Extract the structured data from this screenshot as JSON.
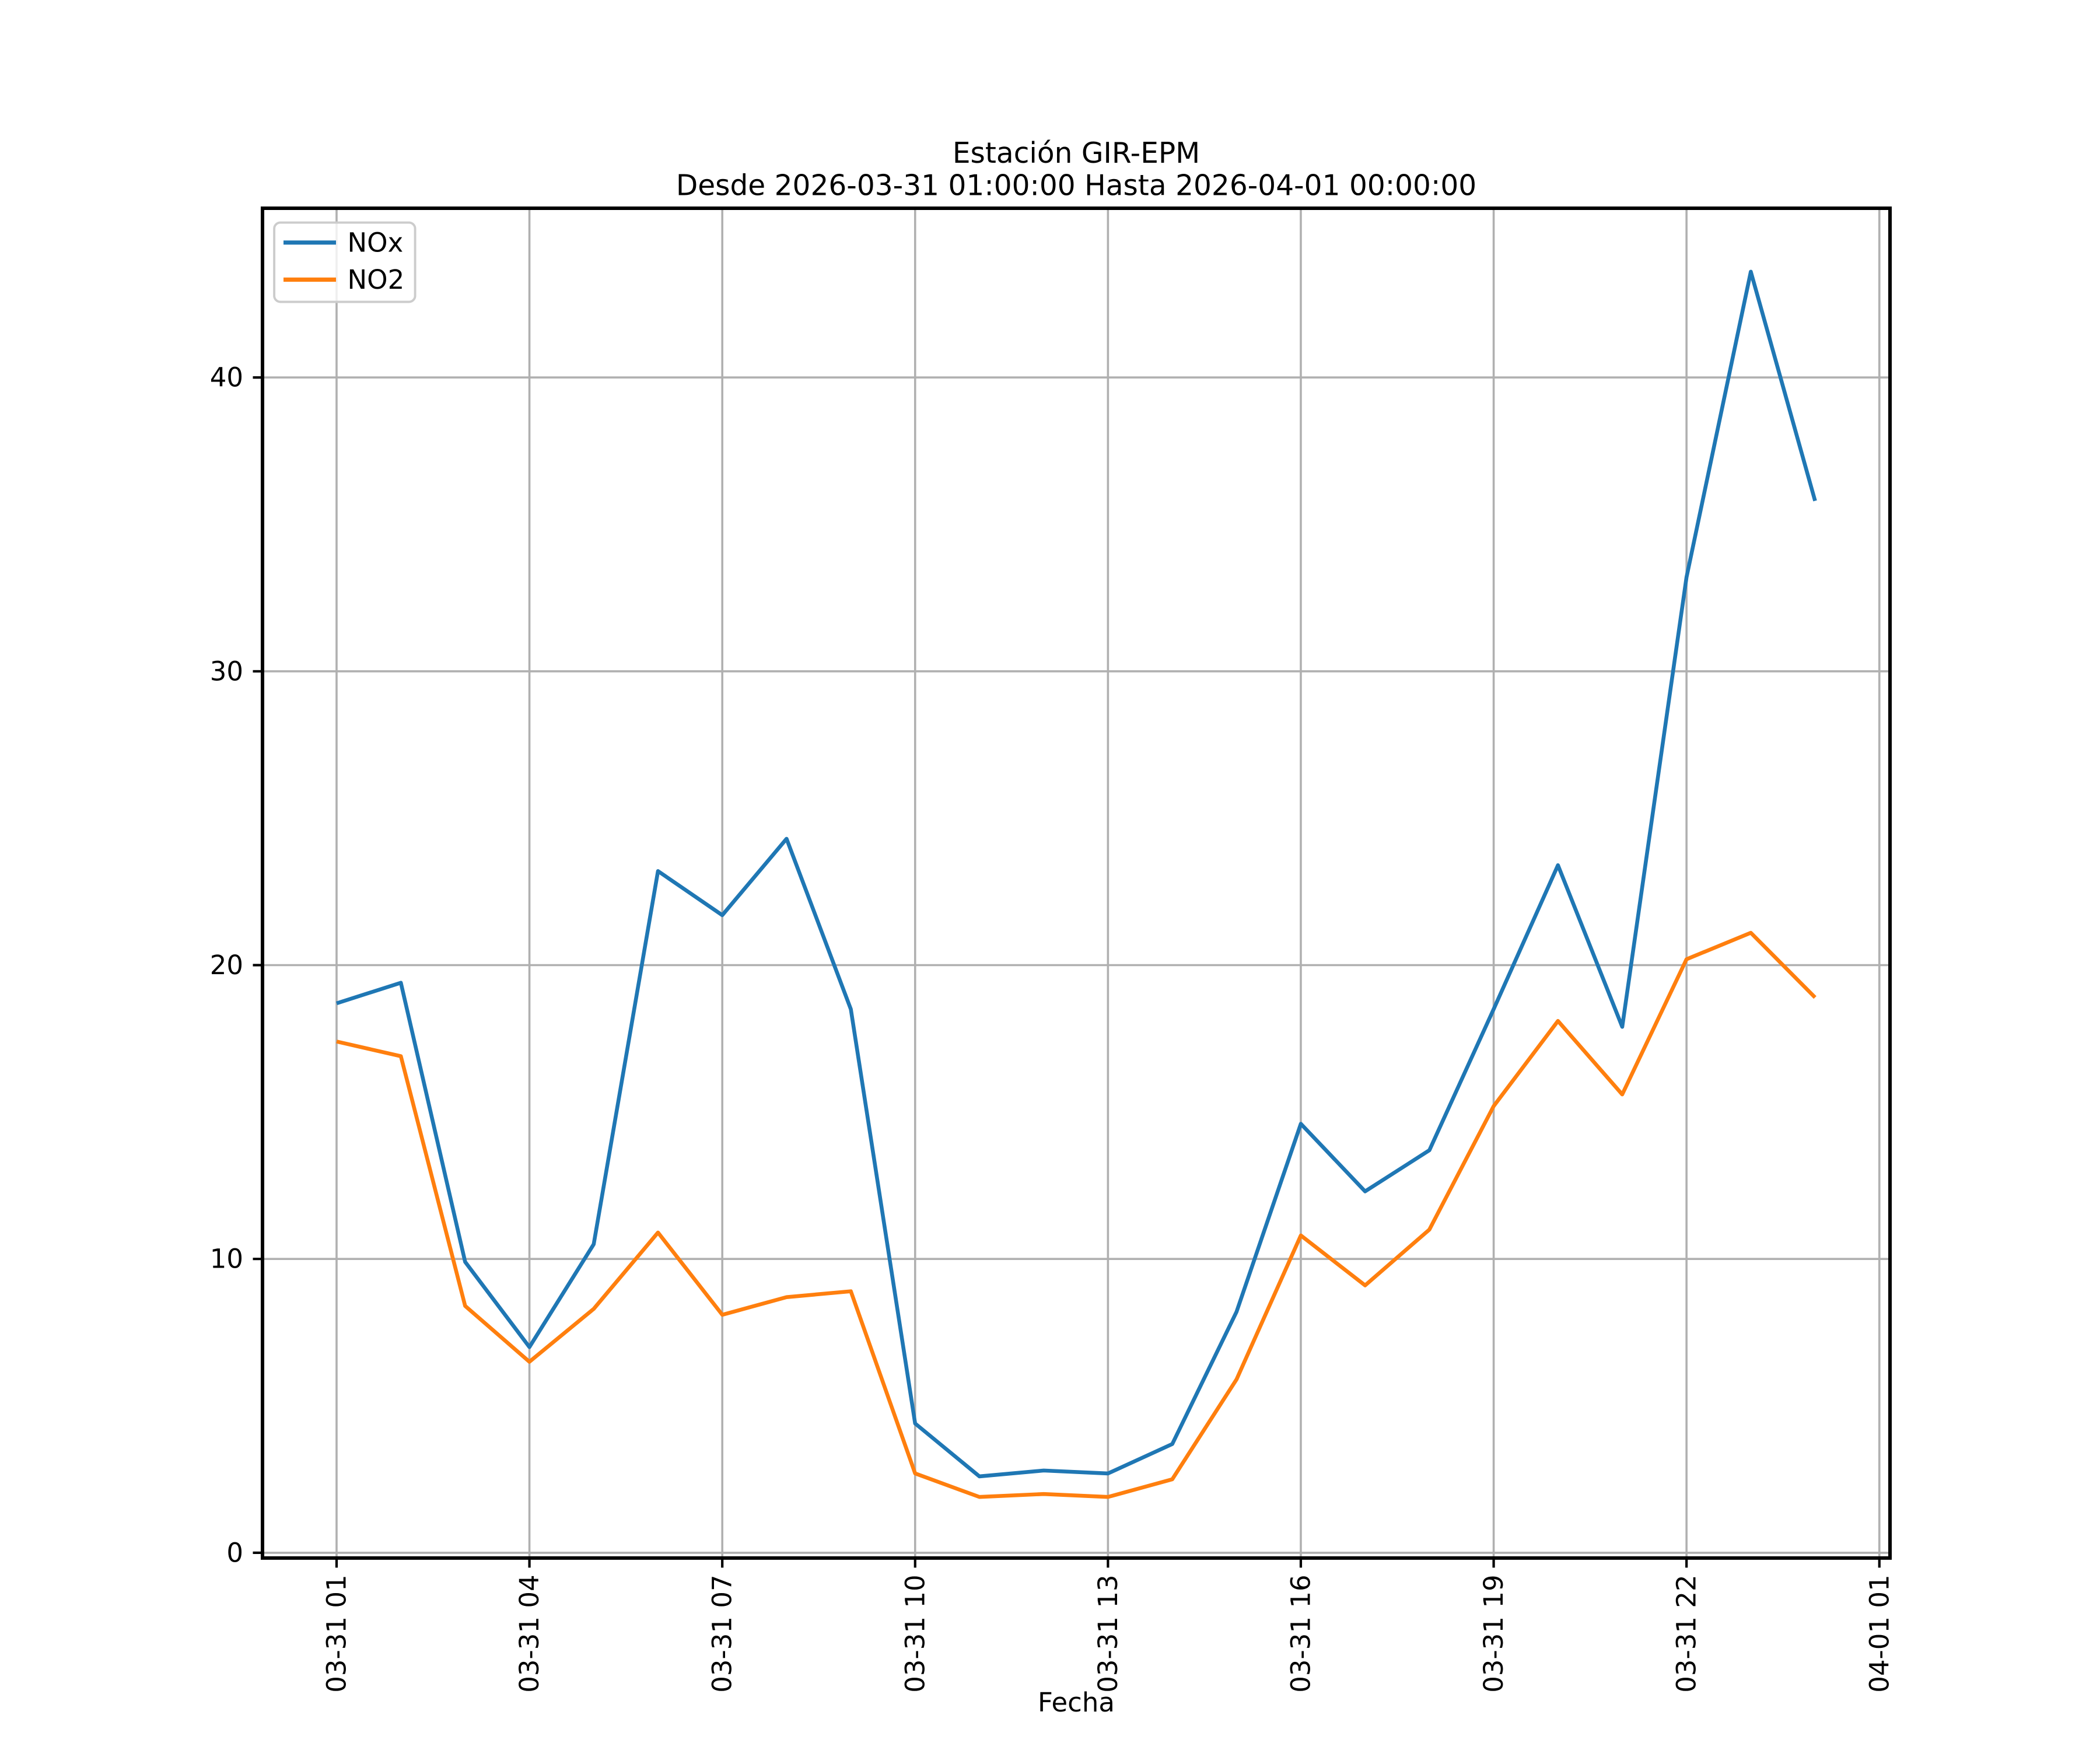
{
  "chart_data": {
    "type": "line",
    "title": "Estación GIR-EPM",
    "subtitle": "Desde 2026-03-31 01:00:00 Hasta 2026-04-01 00:00:00",
    "xlabel": "Fecha",
    "ylabel": "",
    "grid": true,
    "legend_position": "upper-left",
    "background_color": "#ffffff",
    "grid_color": "#b0b0b0",
    "x_start": "2026-03-31 01:00:00",
    "x_end": "2026-04-01 00:00:00",
    "x_step_hours": 1,
    "x_tick_labels": [
      "03-31 01",
      "03-31 04",
      "03-31 07",
      "03-31 10",
      "03-31 13",
      "03-31 16",
      "03-31 19",
      "03-31 22",
      "04-01 01"
    ],
    "x_tick_indices": [
      0,
      3,
      6,
      9,
      12,
      15,
      18,
      21,
      24
    ],
    "y_ticks": [
      0,
      10,
      20,
      30,
      40
    ],
    "ylim": [
      -0.2,
      45.8
    ],
    "series": [
      {
        "name": "NOx",
        "color": "#1f77b4",
        "values": [
          18.7,
          19.4,
          9.9,
          7.0,
          10.5,
          23.2,
          21.7,
          24.3,
          18.5,
          4.4,
          2.6,
          2.8,
          2.7,
          3.7,
          8.2,
          14.6,
          12.3,
          13.7,
          18.5,
          23.4,
          17.9,
          33.2,
          43.6,
          35.8
        ]
      },
      {
        "name": "NO2",
        "color": "#ff7f0e",
        "values": [
          17.4,
          16.9,
          8.4,
          6.5,
          8.3,
          10.9,
          8.1,
          8.7,
          8.9,
          2.7,
          1.9,
          2.0,
          1.9,
          2.5,
          5.9,
          10.8,
          9.1,
          11.0,
          15.2,
          18.1,
          15.6,
          20.2,
          21.1,
          18.9
        ]
      }
    ]
  }
}
